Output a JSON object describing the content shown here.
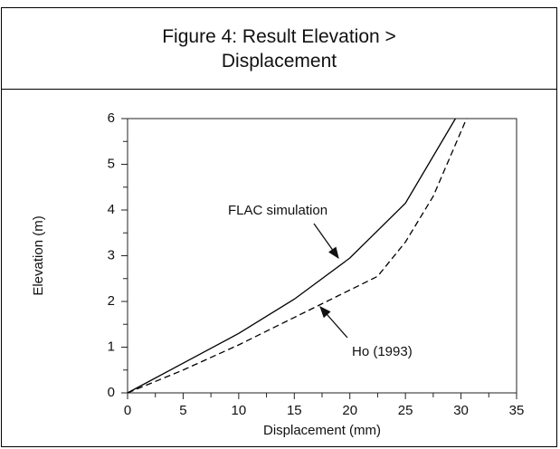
{
  "chart_data": {
    "type": "line",
    "title": "Figure 4: Result Elevation > Displacement",
    "xlabel": "Displacement (mm)",
    "ylabel": "Elevation (m)",
    "xlim": [
      0,
      35
    ],
    "xticks": [
      0,
      5,
      10,
      15,
      20,
      25,
      30,
      35
    ],
    "ylim": [
      0,
      6
    ],
    "yticks": [
      0,
      1,
      2,
      3,
      4,
      5,
      6
    ],
    "series": [
      {
        "name": "FLAC simulation",
        "color": "#000000",
        "dash": false,
        "x": [
          0,
          5,
          10,
          15,
          20,
          25,
          29.5
        ],
        "values": [
          0,
          0.65,
          1.3,
          2.05,
          2.95,
          4.15,
          6
        ]
      },
      {
        "name": "Ho (1993)",
        "color": "#000000",
        "dash": true,
        "x": [
          0,
          5,
          10,
          15,
          20,
          22.5,
          25,
          27.5,
          30.5
        ],
        "values": [
          0,
          0.5,
          1.05,
          1.65,
          2.25,
          2.55,
          3.3,
          4.3,
          6
        ]
      }
    ]
  }
}
